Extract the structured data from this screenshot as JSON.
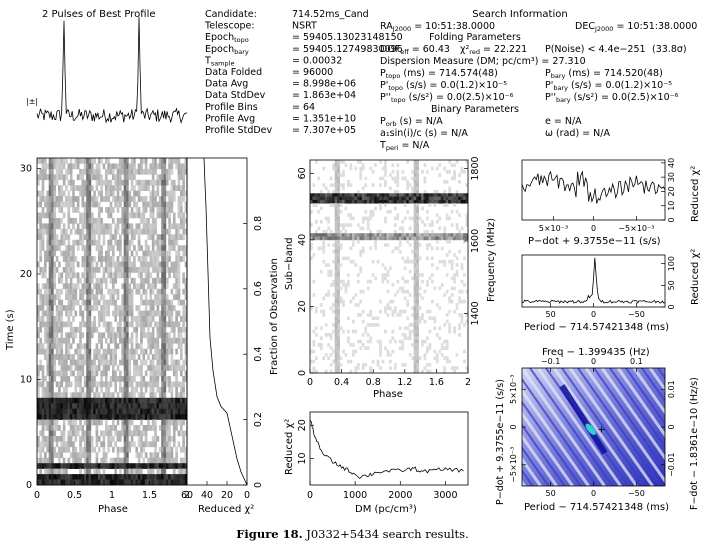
{
  "figure": {
    "caption_bold": "Figure 18.",
    "caption_text": " J0332+5434 search results."
  },
  "profile_title": "2 Pulses of Best Profile",
  "profile_error_label": "|±|",
  "info_block_1": [
    {
      "label": "Candidate:",
      "value": "714.52ms_Cand"
    },
    {
      "label": "Telescope:",
      "value": "NSRT"
    },
    {
      "label": "Epoch",
      "sub": "topo",
      "value": "= 59405.13023148150"
    },
    {
      "label": "Epoch",
      "sub": "bary",
      "value": "= 59405.12749830096"
    },
    {
      "label": "T",
      "sub": "sample",
      "value": "= 0.00032"
    },
    {
      "label": "Data Folded",
      "value": "= 96000"
    },
    {
      "label": "Data Avg",
      "value": "= 8.998e+06"
    },
    {
      "label": "Data StdDev",
      "value": "= 1.863e+04"
    },
    {
      "label": "Profile Bins",
      "value": "= 64"
    },
    {
      "label": "Profile Avg",
      "value": "= 1.351e+10"
    },
    {
      "label": "Profile StdDev",
      "value": "= 7.307e+05"
    }
  ],
  "search_info": {
    "title": "Search Information",
    "ra": "RA",
    "ra_sub": "J2000",
    "ra_value": "= 10:51:38.0000",
    "dec": "DEC",
    "dec_sub": "J2000",
    "dec_value": "= 10:51:38.0000",
    "folding_title": "Folding Parameters",
    "dof_line": "DOF",
    "dof_sub": "eff",
    "dof_value": "= 60.43",
    "chi_line": "χ²",
    "chi_sub": "red",
    "chi_value": "= 22.221",
    "pnoise": "P(Noise) < 4.4e−251",
    "sigma": "(33.8σ)",
    "dm_line": "Dispersion Measure (DM; pc/cm³) = 27.310",
    "p_topo": "P",
    "p_topo_sub": "topo",
    "p_topo_value": "(ms) = 714.574(48)",
    "p_bary": "P",
    "p_bary_sub": "bary",
    "p_bary_value": "(ms) = 714.520(48)",
    "pd_topo": "P'",
    "pd_topo_sub": "topo",
    "pd_topo_value": "(s/s) = 0.0(1.2)×10⁻⁵",
    "pd_bary": "P'",
    "pd_bary_sub": "bary",
    "pd_bary_value": "(s/s) = 0.0(1.2)×10⁻⁵",
    "pdd_topo": "P''",
    "pdd_topo_sub": "topo",
    "pdd_topo_value": "(s/s²) = 0.0(2.5)×10⁻⁶",
    "pdd_bary": "P''",
    "pdd_bary_sub": "bary",
    "pdd_bary_value": "(s/s²) = 0.0(2.5)×10⁻⁶",
    "binary_title": "Binary Parameters",
    "porb": "P",
    "porb_sub": "orb",
    "porb_value": "(s) = N/A",
    "ecc": "e = N/A",
    "asini": "a₁sin(i)/c (s) = N/A",
    "omega": "ω (rad) = N/A",
    "tperi": "T",
    "tperi_sub": "peri",
    "tperi_value": "= N/A"
  },
  "chart_data": [
    {
      "type": "line",
      "name": "profile",
      "title": "2 Pulses of Best Profile",
      "x": "phase 0–2 (two rotations)",
      "pulse_positions": [
        0.18,
        0.68
      ],
      "noise_level": 0.22,
      "peak_level": 1.0
    },
    {
      "type": "heatmap",
      "name": "time-phase",
      "xlabel": "Phase",
      "ylabel": "Time (s)",
      "xlim": [
        0,
        2
      ],
      "ylim": [
        0,
        31
      ],
      "x_ticks": [
        "0",
        "0.5",
        "1",
        "1.5",
        "2"
      ],
      "y_ticks": [
        "0",
        "10",
        "20",
        "30"
      ],
      "dark_bands_time_s": [
        0.0,
        0.9,
        1.8,
        6.8,
        7.4,
        7.9
      ],
      "stripe_phase": [
        0.19,
        0.69,
        1.19,
        1.69
      ]
    },
    {
      "type": "line",
      "name": "reduced-chi2-vs-time",
      "xlabel": "Reduced χ²",
      "ylabel": "Fraction of Observation",
      "x_ticks": [
        "60",
        "40",
        "20",
        "0"
      ],
      "y_ticks": [
        "0",
        "0.2",
        "0.4",
        "0.6",
        "0.8"
      ],
      "xlim": [
        60,
        0
      ],
      "ylim": [
        0,
        1
      ],
      "points": [
        [
          0,
          0
        ],
        [
          6,
          0.04
        ],
        [
          10,
          0.08
        ],
        [
          15,
          0.15
        ],
        [
          20,
          0.22
        ],
        [
          26,
          0.24
        ],
        [
          30,
          0.27
        ],
        [
          34,
          0.35
        ],
        [
          37,
          0.45
        ],
        [
          38,
          0.55
        ],
        [
          39,
          0.65
        ],
        [
          40,
          0.75
        ],
        [
          41,
          0.85
        ],
        [
          42,
          0.92
        ],
        [
          43,
          1.0
        ]
      ]
    },
    {
      "type": "heatmap",
      "name": "subband-phase",
      "xlabel": "Phase",
      "ylabel": "Sub−band",
      "right_label": "Frequency (MHz)",
      "x_ticks": [
        "0",
        "0.4",
        "0.8",
        "1.2",
        "1.6",
        "2"
      ],
      "y_ticks": [
        "0",
        "20",
        "40",
        "60"
      ],
      "right_ticks": [
        "1400",
        "1600",
        "1800"
      ],
      "xlim": [
        0,
        2
      ],
      "ylim": [
        0,
        64
      ],
      "bright_subbands": [
        52,
        53,
        41
      ],
      "pulse_phase": [
        0.35,
        1.35
      ]
    },
    {
      "type": "line",
      "name": "chi2-vs-dm",
      "xlabel": "DM (pc/cm³)",
      "ylabel": "Reduced χ²",
      "x_ticks": [
        "0",
        "1000",
        "2000",
        "3000"
      ],
      "y_ticks": [
        "10",
        "20"
      ],
      "xlim": [
        0,
        3500
      ],
      "ylim": [
        2,
        24
      ],
      "points": [
        [
          0,
          22
        ],
        [
          100,
          17
        ],
        [
          250,
          12
        ],
        [
          500,
          9
        ],
        [
          700,
          7.5
        ],
        [
          900,
          6
        ],
        [
          1100,
          4.5
        ],
        [
          1300,
          5
        ],
        [
          1500,
          6
        ],
        [
          1800,
          6.2
        ],
        [
          2100,
          6.5
        ],
        [
          2300,
          7
        ],
        [
          2500,
          6
        ],
        [
          2800,
          6.5
        ],
        [
          3100,
          6.8
        ],
        [
          3400,
          6.2
        ]
      ]
    },
    {
      "type": "line",
      "name": "chi2-vs-pdot",
      "xlabel": "P−dot + 9.3755e−11 (s/s)",
      "ylabel": "Reduced χ²",
      "x_ticks": [
        "5×10⁻³",
        "0",
        "−5×10⁻³"
      ],
      "y_ticks": [
        "0",
        "10",
        "20",
        "30",
        "40"
      ],
      "xlim": [
        0.008,
        -0.008
      ],
      "ylim": [
        0,
        42
      ]
    },
    {
      "type": "line",
      "name": "chi2-vs-period",
      "xlabel": "Period − 714.57421348 (ms)",
      "ylabel": "Reduced χ²",
      "x_ticks": [
        "50",
        "0",
        "−50"
      ],
      "y_ticks": [
        "0",
        "50",
        "100"
      ],
      "xlim": [
        80,
        -80
      ],
      "ylim": [
        0,
        120
      ]
    },
    {
      "type": "heatmap",
      "name": "period-pdot",
      "top_label": "Freq − 1.399435 (Hz)",
      "top_ticks": [
        "−0.1",
        "0",
        "0.1"
      ],
      "xlabel": "Period − 714.57421348 (ms)",
      "x_ticks": [
        "50",
        "0",
        "−50"
      ],
      "ylabel": "P−dot + 9.3755e−11 (s/s)",
      "y_ticks": [
        "5×10⁻³",
        "0",
        "−5×10⁻³"
      ],
      "right_label": "F−dot − 1.8361e−10 (Hz/s)",
      "right_ticks": [
        "0.01",
        "0",
        "−0.01"
      ]
    }
  ]
}
